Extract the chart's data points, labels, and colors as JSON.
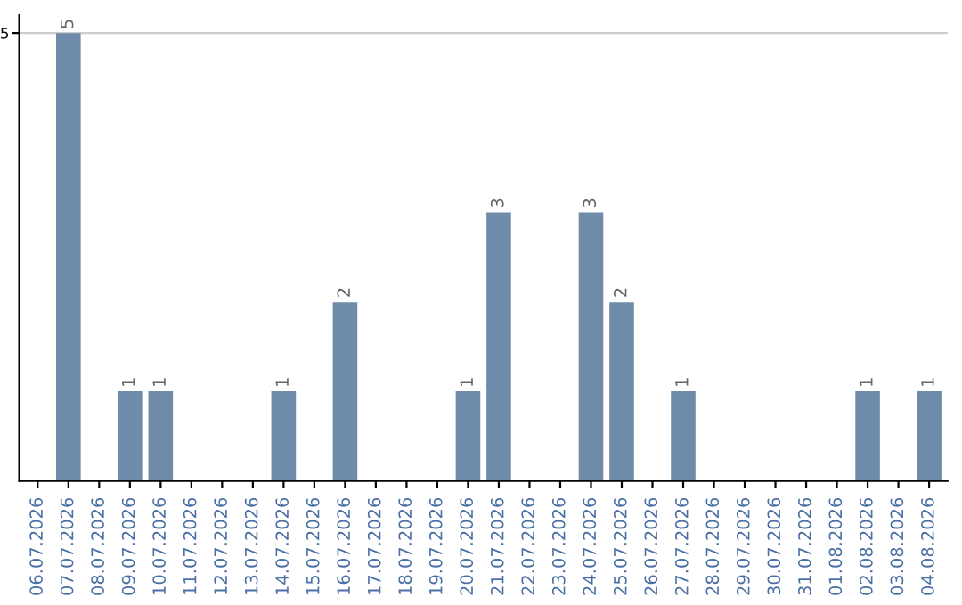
{
  "chart_data": {
    "type": "bar",
    "categories": [
      "06.07.2026",
      "07.07.2026",
      "08.07.2026",
      "09.07.2026",
      "10.07.2026",
      "11.07.2026",
      "12.07.2026",
      "13.07.2026",
      "14.07.2026",
      "15.07.2026",
      "16.07.2026",
      "17.07.2026",
      "18.07.2026",
      "19.07.2026",
      "20.07.2026",
      "21.07.2026",
      "22.07.2026",
      "23.07.2026",
      "24.07.2026",
      "25.07.2026",
      "26.07.2026",
      "27.07.2026",
      "28.07.2026",
      "29.07.2026",
      "30.07.2026",
      "31.07.2026",
      "01.08.2026",
      "02.08.2026",
      "03.08.2026",
      "04.08.2026"
    ],
    "values": [
      0,
      5,
      0,
      1,
      1,
      0,
      0,
      0,
      1,
      0,
      2,
      0,
      0,
      0,
      1,
      3,
      0,
      0,
      3,
      2,
      0,
      1,
      0,
      0,
      0,
      0,
      0,
      1,
      0,
      1
    ],
    "value_labels": [
      null,
      "5",
      null,
      "1",
      "1",
      null,
      null,
      null,
      "1",
      null,
      "2",
      null,
      null,
      null,
      "1",
      "3",
      null,
      null,
      "3",
      "2",
      null,
      "1",
      null,
      null,
      null,
      null,
      null,
      "1",
      null,
      "1"
    ],
    "color": "#6e8caa",
    "ylim": [
      0,
      5.2
    ],
    "yticks": [
      5
    ],
    "grid": "y"
  }
}
